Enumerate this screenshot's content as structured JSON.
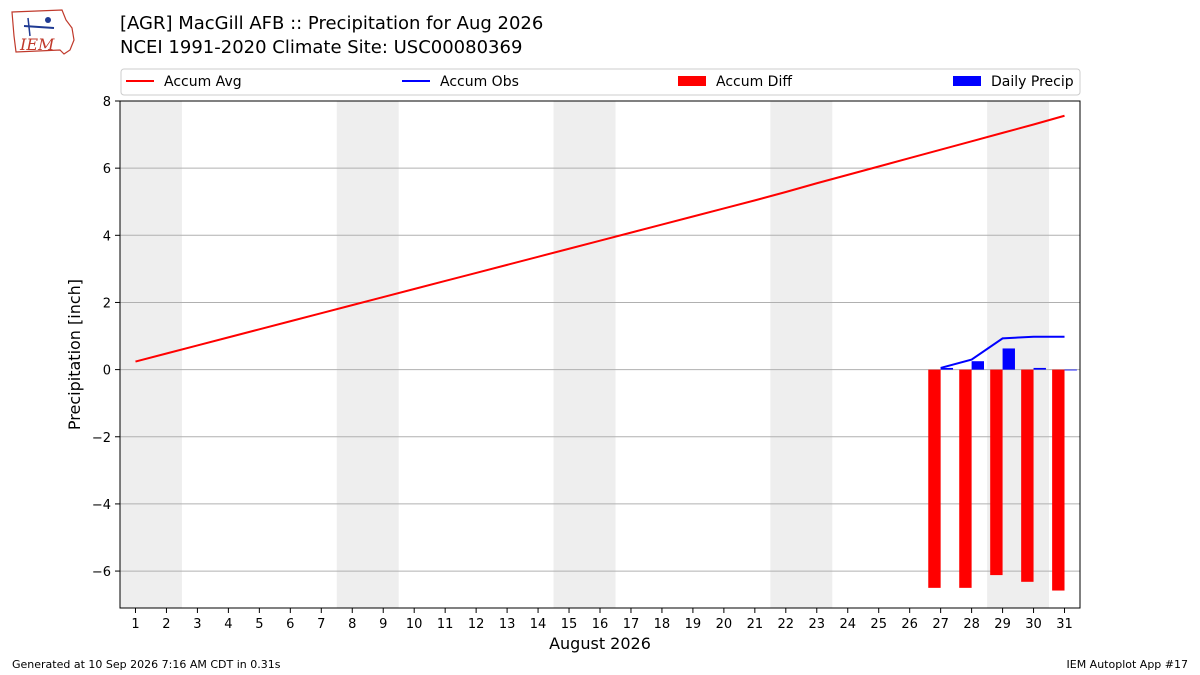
{
  "header": {
    "title_line1": "[AGR] MacGill AFB :: Precipitation for Aug 2026",
    "title_line2": "NCEI 1991-2020 Climate Site: USC00080369"
  },
  "logo": {
    "text": "IEM"
  },
  "footer": {
    "left": "Generated at 10 Sep 2026 7:16 AM CDT in 0.31s",
    "right": "IEM Autoplot App #17"
  },
  "colors": {
    "accum_avg": "#ff0000",
    "accum_obs": "#0000ff",
    "accum_diff": "#ff0000",
    "daily_precip": "#0000ff",
    "weekend_shade": "#eeeeee",
    "grid": "#b0b0b0"
  },
  "chart_data": {
    "type": "bar",
    "xlabel": "August 2026",
    "ylabel": "Precipitation [inch]",
    "xlim": [
      0.5,
      31.5
    ],
    "ylim": [
      -7.1,
      8.0
    ],
    "yticks": [
      -6,
      -4,
      -2,
      0,
      2,
      4,
      6,
      8
    ],
    "ytick_labels": [
      "−6",
      "−4",
      "−2",
      "0",
      "2",
      "4",
      "6",
      "8"
    ],
    "xticks": [
      1,
      2,
      3,
      4,
      5,
      6,
      7,
      8,
      9,
      10,
      11,
      12,
      13,
      14,
      15,
      16,
      17,
      18,
      19,
      20,
      21,
      22,
      23,
      24,
      25,
      26,
      27,
      28,
      29,
      30,
      31
    ],
    "grid": "horizontal",
    "legend_position": "top",
    "shaded_days": [
      [
        1,
        2
      ],
      [
        8,
        9
      ],
      [
        15,
        16
      ],
      [
        22,
        23
      ],
      [
        29,
        30
      ]
    ],
    "series": [
      {
        "name": "Accum Avg",
        "kind": "line",
        "x": [
          1,
          2,
          3,
          4,
          5,
          6,
          7,
          8,
          9,
          10,
          11,
          12,
          13,
          14,
          15,
          16,
          17,
          18,
          19,
          20,
          21,
          22,
          23,
          24,
          25,
          26,
          27,
          28,
          29,
          30,
          31
        ],
        "values": [
          0.24,
          0.48,
          0.72,
          0.96,
          1.2,
          1.44,
          1.68,
          1.92,
          2.16,
          2.4,
          2.64,
          2.88,
          3.12,
          3.36,
          3.6,
          3.84,
          4.08,
          4.32,
          4.56,
          4.8,
          5.04,
          5.29,
          5.55,
          5.8,
          6.05,
          6.3,
          6.55,
          6.8,
          7.05,
          7.3,
          7.56
        ]
      },
      {
        "name": "Accum Obs",
        "kind": "line",
        "x": [
          27,
          28,
          29,
          30,
          31
        ],
        "values": [
          0.05,
          0.3,
          0.93,
          0.98,
          0.98
        ]
      },
      {
        "name": "Accum Diff",
        "kind": "bar",
        "x": [
          27,
          28,
          29,
          30,
          31
        ],
        "values": [
          -6.5,
          -6.5,
          -6.12,
          -6.32,
          -6.58
        ]
      },
      {
        "name": "Daily Precip",
        "kind": "bar",
        "x": [
          27,
          28,
          29,
          30,
          31
        ],
        "values": [
          0.05,
          0.25,
          0.63,
          0.05,
          0.0
        ]
      }
    ]
  }
}
